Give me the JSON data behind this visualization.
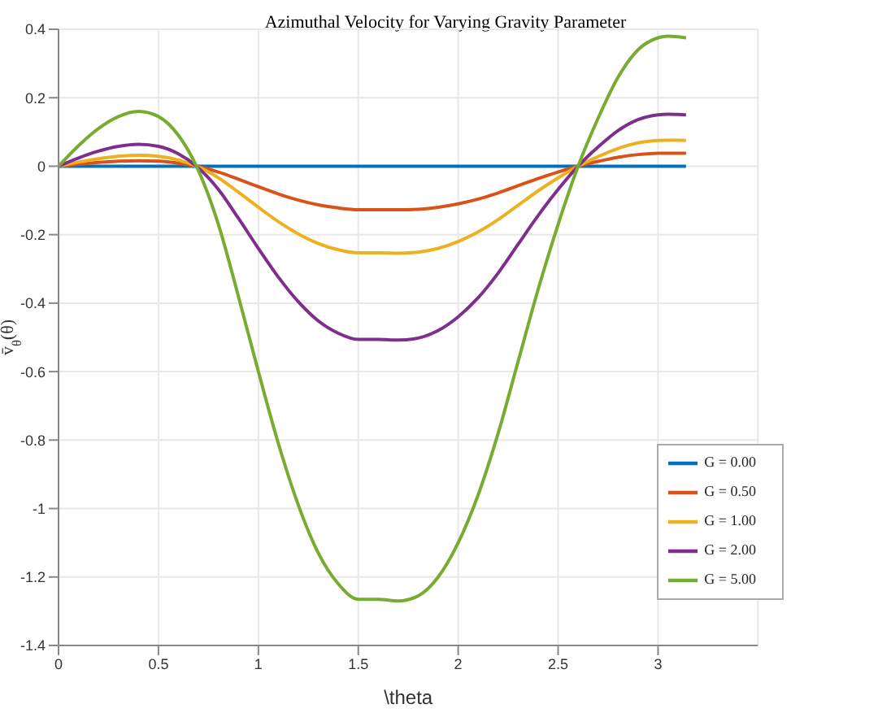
{
  "chart_data": {
    "type": "line",
    "title": "Azimuthal Velocity for Varying Gravity Parameter",
    "xlabel": "\\theta",
    "ylabel": "v̄$_{θ}$(θ)",
    "x": [
      0,
      0.1,
      0.2,
      0.3,
      0.4,
      0.5,
      0.6,
      0.69,
      0.8,
      0.9,
      1.0,
      1.1,
      1.2,
      1.3,
      1.4,
      1.5,
      1.6,
      1.7,
      1.8,
      1.9,
      2.0,
      2.1,
      2.2,
      2.3,
      2.4,
      2.5,
      2.6,
      2.7,
      2.8,
      2.9,
      3.0,
      3.05,
      3.1,
      3.14
    ],
    "series": [
      {
        "name": "G = 0.00",
        "color": "#0072bd",
        "values": [
          0,
          0,
          0,
          0,
          0,
          0,
          0,
          0,
          0,
          0,
          0,
          0,
          0,
          0,
          0,
          0,
          0,
          0,
          0,
          0,
          0,
          0,
          0,
          0,
          0,
          0,
          0,
          0,
          0,
          0,
          0,
          0,
          0,
          0
        ]
      },
      {
        "name": "G = 0.50",
        "color": "#d95319",
        "values": [
          0,
          0.006,
          0.011,
          0.015,
          0.016,
          0.015,
          0.009,
          0,
          -0.017,
          -0.038,
          -0.06,
          -0.081,
          -0.099,
          -0.113,
          -0.122,
          -0.127,
          -0.127,
          -0.127,
          -0.126,
          -0.12,
          -0.11,
          -0.096,
          -0.078,
          -0.057,
          -0.036,
          -0.017,
          0,
          0.014,
          0.026,
          0.034,
          0.038,
          0.038,
          0.038,
          0.038
        ]
      },
      {
        "name": "G = 1.00",
        "color": "#edb120",
        "values": [
          0,
          0.012,
          0.022,
          0.029,
          0.032,
          0.029,
          0.018,
          0,
          -0.034,
          -0.076,
          -0.12,
          -0.162,
          -0.198,
          -0.226,
          -0.244,
          -0.253,
          -0.253,
          -0.254,
          -0.251,
          -0.24,
          -0.22,
          -0.192,
          -0.156,
          -0.114,
          -0.072,
          -0.034,
          0,
          0.028,
          0.052,
          0.068,
          0.075,
          0.076,
          0.076,
          0.075
        ]
      },
      {
        "name": "G = 2.00",
        "color": "#7e2f8e",
        "values": [
          0,
          0.024,
          0.044,
          0.058,
          0.064,
          0.058,
          0.036,
          0,
          -0.068,
          -0.152,
          -0.24,
          -0.324,
          -0.396,
          -0.452,
          -0.488,
          -0.506,
          -0.506,
          -0.508,
          -0.502,
          -0.48,
          -0.44,
          -0.384,
          -0.312,
          -0.228,
          -0.144,
          -0.068,
          0,
          0.056,
          0.104,
          0.136,
          0.15,
          0.152,
          0.151,
          0.15
        ]
      },
      {
        "name": "G = 5.00",
        "color": "#77ac30",
        "values": [
          0,
          0.06,
          0.11,
          0.145,
          0.16,
          0.145,
          0.09,
          0,
          -0.17,
          -0.38,
          -0.6,
          -0.81,
          -0.99,
          -1.13,
          -1.22,
          -1.265,
          -1.265,
          -1.27,
          -1.255,
          -1.2,
          -1.1,
          -0.96,
          -0.78,
          -0.57,
          -0.36,
          -0.17,
          0,
          0.14,
          0.26,
          0.34,
          0.375,
          0.38,
          0.378,
          0.375
        ]
      }
    ],
    "xlim": [
      0,
      3.5
    ],
    "xticks": [
      0,
      0.5,
      1,
      1.5,
      2,
      2.5,
      3
    ],
    "ylim": [
      -1.4,
      0.4
    ],
    "yticks": [
      -1.4,
      -1.2,
      -1,
      -0.8,
      -0.6,
      -0.4,
      -0.2,
      0,
      0.2,
      0.4
    ],
    "grid": true,
    "legend": "bottom right",
    "marker": "none",
    "line_style": "solid"
  }
}
